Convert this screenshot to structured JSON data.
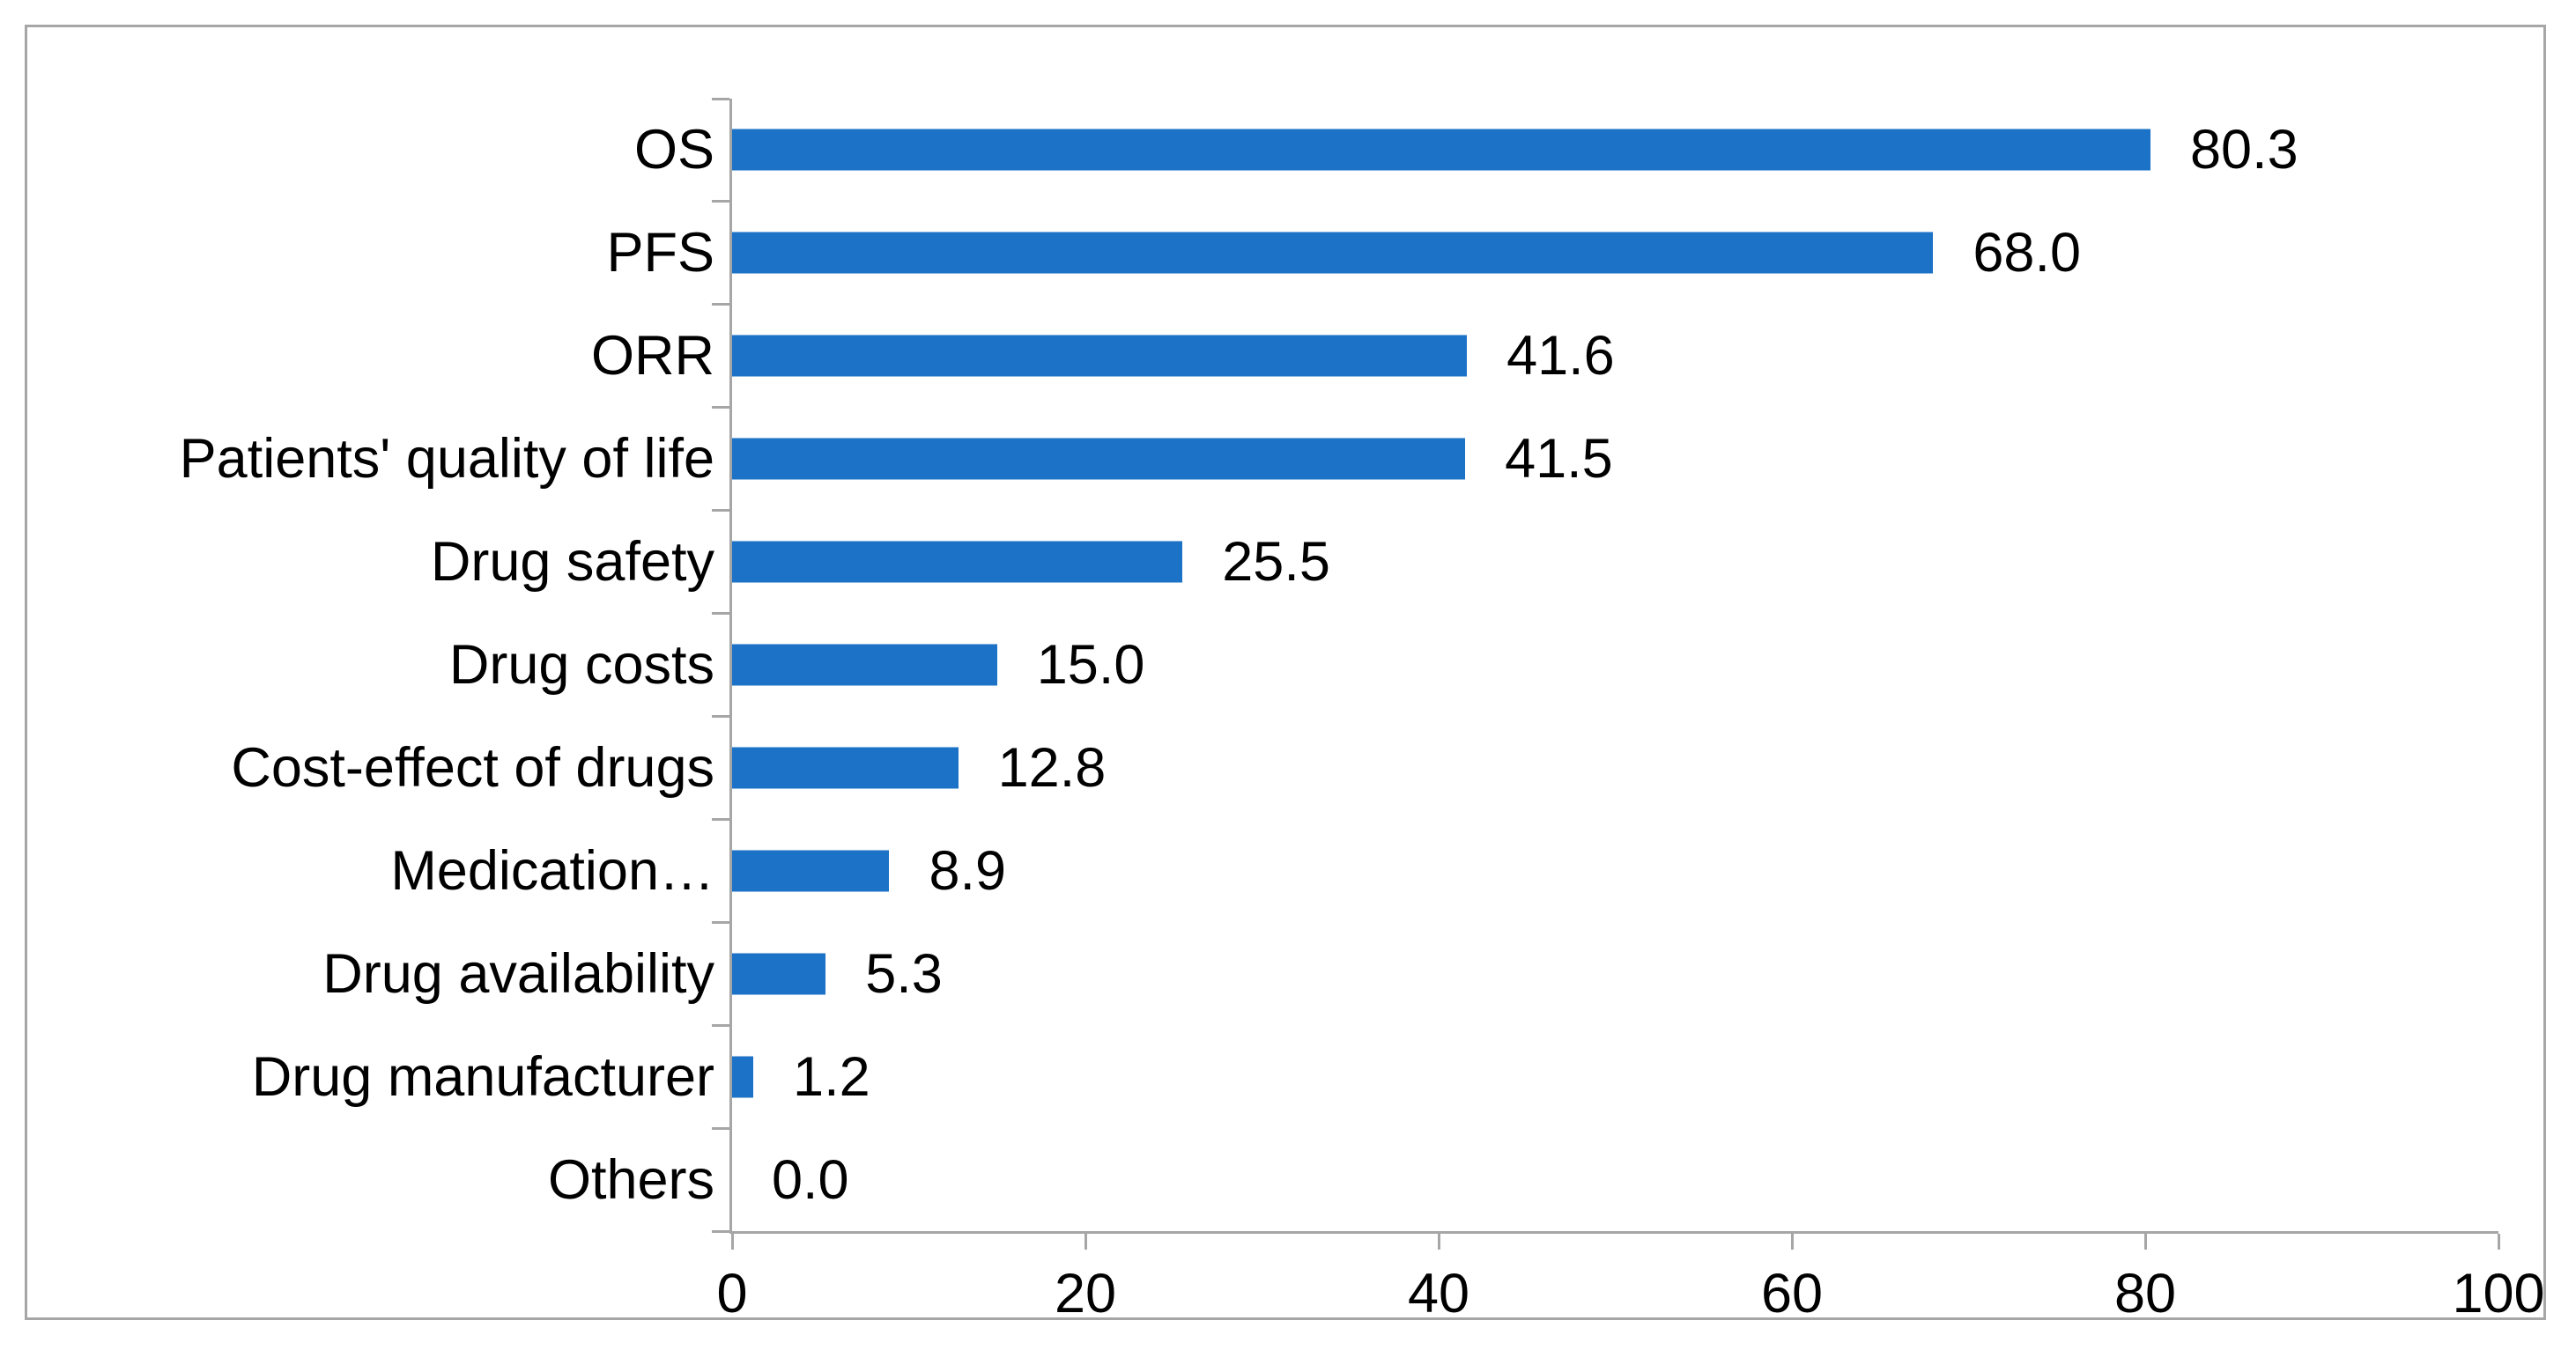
{
  "chart_data": {
    "type": "bar",
    "orientation": "horizontal",
    "title": "",
    "xlabel": "",
    "ylabel": "",
    "categories": [
      "OS",
      "PFS",
      "ORR",
      "Patients' quality of life",
      "Drug safety",
      "Drug costs",
      "Cost-effect of drugs",
      "Medication…",
      "Drug availability",
      "Drug manufacturer",
      "Others"
    ],
    "values": [
      80.3,
      68.0,
      41.6,
      41.5,
      25.5,
      15.0,
      12.8,
      8.9,
      5.3,
      1.2,
      0.0
    ],
    "value_labels": [
      "80.3",
      "68.0",
      "41.6",
      "41.5",
      "25.5",
      "15.0",
      "12.8",
      "8.9",
      "5.3",
      "1.2",
      "0.0"
    ],
    "xlim": [
      0,
      100
    ],
    "x_ticks": [
      0,
      20,
      40,
      60,
      80,
      100
    ],
    "x_tick_labels": [
      "0",
      "20",
      "40",
      "60",
      "80",
      "100"
    ],
    "grid": false,
    "legend": "none",
    "data_labels_position": "outside-end",
    "colors": {
      "bar": "#1b72c6",
      "axis": "#a6a6a6",
      "frame_border": "#a6a6a6",
      "text": "#000000",
      "background": "#ffffff"
    }
  }
}
